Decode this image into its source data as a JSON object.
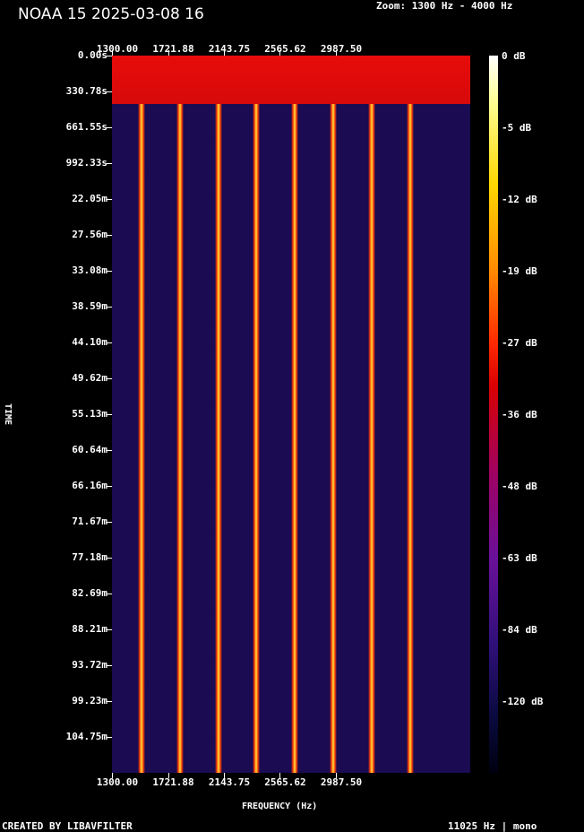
{
  "header": {
    "title": "NOAA 15 2025-03-08 16",
    "zoom": "Zoom: 1300 Hz - 4000 Hz"
  },
  "axes": {
    "x_label": "FREQUENCY (Hz)",
    "y_label": "TIME",
    "freq_ticks_top": [
      "1300.00",
      "1721.88",
      "2143.75",
      "2565.62",
      "2987.50"
    ],
    "freq_ticks_bottom": [
      "1300.00",
      "1721.88",
      "2143.75",
      "2565.62",
      "2987.50"
    ],
    "time_ticks": [
      "0.00s",
      "330.78s",
      "661.55s",
      "992.33s",
      "22.05m",
      "27.56m",
      "33.08m",
      "38.59m",
      "44.10m",
      "49.62m",
      "55.13m",
      "60.64m",
      "66.16m",
      "71.67m",
      "77.18m",
      "82.69m",
      "88.21m",
      "93.72m",
      "99.23m",
      "104.75m"
    ]
  },
  "colorbar": {
    "labels": [
      "0 dB",
      "-5 dB",
      "-12 dB",
      "-19 dB",
      "-27 dB",
      "-36 dB",
      "-48 dB",
      "-63 dB",
      "-84 dB",
      "-120 dB"
    ]
  },
  "footer": {
    "left": "CREATED BY LIBAVFILTER",
    "right": "11025 Hz | mono"
  },
  "colors": {
    "background": "#000000",
    "header_band": "#e00b0b",
    "plot_bg": "#1a0b52",
    "line_hot": "#ffe040",
    "line_edge": "#ff3a00"
  },
  "spectrogram": {
    "freq_min": 1300,
    "freq_max": 4000,
    "tone_frequencies_hz": [
      1520,
      1810,
      2100,
      2390,
      2680,
      2970,
      3260,
      3550
    ]
  }
}
